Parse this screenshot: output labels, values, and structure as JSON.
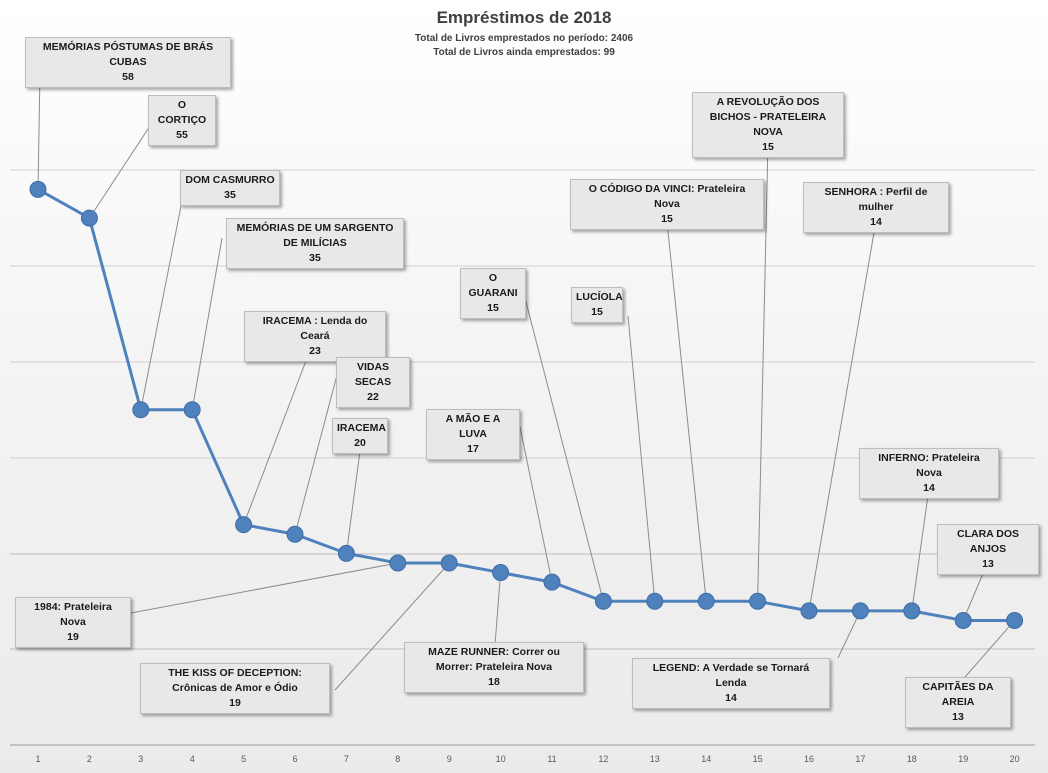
{
  "chart_data": {
    "type": "line",
    "title": "Empréstimos de 2018",
    "subtitle_lines": [
      "Total de Livros emprestados no período: 2406",
      "Total de Livros ainda emprestados: 99"
    ],
    "xlabel": "",
    "ylabel": "",
    "x": [
      1,
      2,
      3,
      4,
      5,
      6,
      7,
      8,
      9,
      10,
      11,
      12,
      13,
      14,
      15,
      16,
      17,
      18,
      19,
      20
    ],
    "y": [
      58,
      55,
      35,
      35,
      23,
      22,
      20,
      19,
      19,
      18,
      17,
      15,
      15,
      15,
      15,
      14,
      14,
      14,
      13,
      13
    ],
    "labels": [
      "MEMÓRIAS PÓSTUMAS DE BRÁS CUBAS",
      "O CORTIÇO",
      "DOM CASMURRO",
      "MEMÓRIAS DE UM SARGENTO DE MILÍCIAS",
      "IRACEMA : Lenda do Ceará",
      "VIDAS SECAS",
      "IRACEMA",
      "1984: Prateleira Nova",
      "THE KISS OF DECEPTION: Crônicas de Amor e Ódio",
      "MAZE RUNNER: Correr ou Morrer: Prateleira Nova",
      "A MÃO E A LUVA",
      "O GUARANI",
      "LUCÍOLA",
      "O CÓDIGO DA VINCI: Prateleira Nova",
      "A REVOLUÇÃO DOS BICHOS - PRATELEIRA NOVA",
      "SENHORA : Perfil de mulher",
      "LEGEND: A Verdade se Tornará Lenda",
      "INFERNO: Prateleira Nova",
      "CLARA DOS ANJOS",
      "CAPITÃES DA AREIA"
    ],
    "grid": true,
    "legend": "none",
    "colors": {
      "series": "#4f81bd",
      "grid": "#d0d0d0",
      "label_bg": "#e8e8e8"
    }
  }
}
